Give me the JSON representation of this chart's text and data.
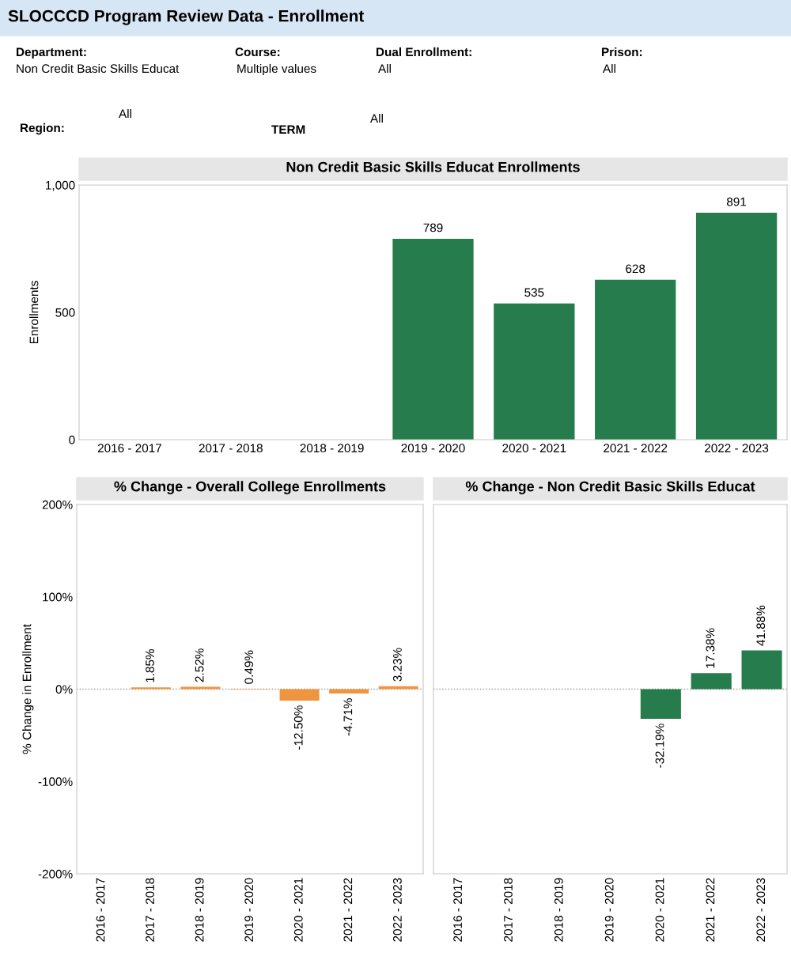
{
  "chart_data": [
    {
      "type": "bar",
      "title": "Non Credit Basic Skills Educat Enrollments",
      "ylabel": "Enrollments",
      "annotations": [
        "SLOCCCD Program Review Data - Enrollment",
        "Department:",
        "Non Credit Basic Skills Educat",
        "Course:",
        "Multiple values",
        "Dual Enrollment:",
        "All",
        "Prison:",
        "All",
        "Region:",
        "All",
        "TERM",
        "All"
      ],
      "categories": [
        "2016 - 2017",
        "2017 - 2018",
        "2018 - 2019",
        "2019 - 2020",
        "2020 - 2021",
        "2021 - 2022",
        "2022 - 2023"
      ],
      "values": [
        null,
        null,
        null,
        789,
        535,
        628,
        891
      ],
      "color": "#267c4c",
      "data_labels": true,
      "ylim": [
        0,
        1000
      ],
      "yticks": [
        0,
        500,
        {
          "value": 1000,
          "label": "1,000"
        }
      ],
      "grid": false,
      "legend": false
    },
    {
      "type": "bar",
      "title": "% Change - Overall College Enrollments",
      "ylabel": "% Change in Enrollment",
      "categories": [
        "2016 - 2017",
        "2017 - 2018",
        "2018 - 2019",
        "2019 - 2020",
        "2020 - 2021",
        "2021 - 2022",
        "2022 - 2023"
      ],
      "values": [
        null,
        1.85,
        2.52,
        0.49,
        -12.5,
        -4.71,
        3.23
      ],
      "color": "#f0953f",
      "value_labels": [
        null,
        "1.85%",
        "2.52%",
        "0.49%",
        "-12.50%",
        "-4.71%",
        "3.23%"
      ],
      "ylim": [
        -200,
        200
      ],
      "yticks": [
        {
          "value": -200,
          "label": "-200%"
        },
        {
          "value": -100,
          "label": "-100%"
        },
        {
          "value": 0,
          "label": "0%"
        },
        {
          "value": 100,
          "label": "100%"
        },
        {
          "value": 200,
          "label": "200%"
        }
      ],
      "ref_lines": [
        {
          "axis": "y",
          "value": 0,
          "color": "#999999",
          "line_style": "dotted"
        }
      ],
      "grid": false,
      "legend": false
    },
    {
      "type": "bar",
      "title": "% Change - Non Credit Basic Skills Educat",
      "categories": [
        "2016 - 2017",
        "2017 - 2018",
        "2018 - 2019",
        "2019 - 2020",
        "2020 - 2021",
        "2021 - 2022",
        "2022 - 2023"
      ],
      "values": [
        null,
        null,
        null,
        null,
        -32.19,
        17.38,
        41.88
      ],
      "color": "#267c4c",
      "value_labels": [
        null,
        null,
        null,
        null,
        "-32.19%",
        "17.38%",
        "41.88%"
      ],
      "ylim": [
        -200,
        200
      ],
      "yticks": [
        -200,
        -100,
        0,
        100,
        200
      ],
      "tick_labels": "x",
      "ref_lines": [
        {
          "axis": "y",
          "value": 0,
          "color": "#999999",
          "line_style": "dotted"
        }
      ],
      "grid": false,
      "legend": false
    }
  ]
}
